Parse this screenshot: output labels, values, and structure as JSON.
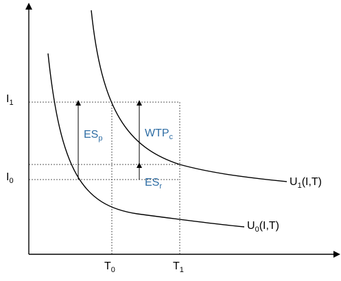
{
  "diagram": {
    "colors": {
      "axis": "#000000",
      "curve": "#000000",
      "guide": "#555555",
      "arrow": "#000000",
      "annotation": "#2e6da4"
    },
    "axis_labels": {
      "I1": {
        "base": "I",
        "sub": "1"
      },
      "I0": {
        "base": "I",
        "sub": "0"
      },
      "T0": {
        "base": "T",
        "sub": "0"
      },
      "T1": {
        "base": "T",
        "sub": "1"
      }
    },
    "curve_labels": {
      "U1": {
        "base": "U",
        "sub": "1",
        "tail": "(I,T)"
      },
      "U0": {
        "base": "U",
        "sub": "0",
        "tail": "(I,T)"
      }
    },
    "annotations": {
      "ESp": {
        "base": "ES",
        "sub": "p"
      },
      "WTPc": {
        "base": "WTP",
        "sub": "c"
      },
      "ESr": {
        "base": "ES",
        "sub": "r"
      }
    }
  }
}
